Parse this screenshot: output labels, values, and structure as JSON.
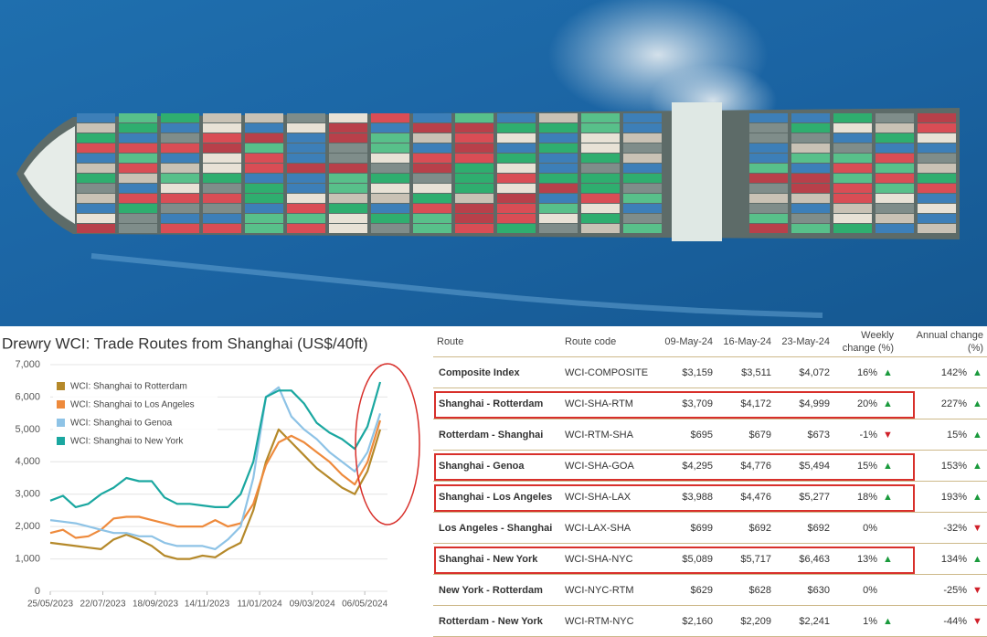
{
  "chart_data": {
    "type": "line",
    "title": "Drewry WCI: Trade Routes from Shanghai (US$/40ft)",
    "x": [
      "25/05/2023",
      "08/06/2023",
      "22/06/2023",
      "06/07/2023",
      "20/07/2023",
      "03/08/2023",
      "17/08/2023",
      "31/08/2023",
      "14/09/2023",
      "28/09/2023",
      "12/10/2023",
      "26/10/2023",
      "09/11/2023",
      "23/11/2023",
      "07/12/2023",
      "21/12/2023",
      "04/01/2024",
      "18/01/2024",
      "01/02/2024",
      "15/02/2024",
      "29/02/2024",
      "14/03/2024",
      "28/03/2024",
      "11/04/2024",
      "25/04/2024",
      "09/05/2024",
      "23/05/2024"
    ],
    "xlim": [
      "25/05/2023",
      "23/05/2024"
    ],
    "xticks": [
      "25/05/2023",
      "22/07/2023",
      "18/09/2023",
      "14/11/2023",
      "11/01/2024",
      "09/03/2024",
      "06/05/2024"
    ],
    "ylim": [
      0,
      7000
    ],
    "yticks": [
      0,
      {
        "value": 1000,
        "label": "1,000"
      },
      {
        "value": 2000,
        "label": "2,000"
      },
      {
        "value": 3000,
        "label": "3,000"
      },
      {
        "value": 4000,
        "label": "4,000"
      },
      {
        "value": 5000,
        "label": "5,000"
      },
      {
        "value": 6000,
        "label": "6,000"
      },
      {
        "value": 7000,
        "label": "7,000"
      }
    ],
    "grid": true,
    "legend": "upper left",
    "series": [
      {
        "name": "WCI: Shanghai to Rotterdam",
        "color": "#b5892a",
        "values": [
          1500,
          1450,
          1400,
          1350,
          1300,
          1600,
          1750,
          1600,
          1400,
          1100,
          1000,
          1000,
          1100,
          1050,
          1300,
          1500,
          2500,
          4000,
          5000,
          4600,
          4200,
          3800,
          3500,
          3200,
          3000,
          3709,
          4999
        ]
      },
      {
        "name": "WCI: Shanghai to Los Angeles",
        "color": "#ee8a3c",
        "values": [
          1800,
          1900,
          1650,
          1700,
          1900,
          2250,
          2300,
          2300,
          2200,
          2100,
          2000,
          2000,
          2000,
          2200,
          2000,
          2100,
          2700,
          3900,
          4600,
          4800,
          4600,
          4300,
          4000,
          3600,
          3300,
          3988,
          5277
        ]
      },
      {
        "name": "WCI: Shanghai to Genoa",
        "color": "#8ec3e6",
        "values": [
          2200,
          2150,
          2100,
          2000,
          1900,
          1800,
          1800,
          1700,
          1700,
          1500,
          1400,
          1400,
          1400,
          1300,
          1600,
          2000,
          3500,
          6000,
          6300,
          5400,
          5000,
          4700,
          4300,
          4000,
          3700,
          4295,
          5494
        ]
      },
      {
        "name": "WCI: Shanghai to New York",
        "color": "#1aa7a0",
        "values": [
          2800,
          2950,
          2600,
          2700,
          3000,
          3200,
          3500,
          3400,
          3400,
          2900,
          2700,
          2700,
          2650,
          2600,
          2600,
          3000,
          4000,
          6000,
          6200,
          6200,
          5800,
          5200,
          4900,
          4700,
          4400,
          5089,
          6463
        ]
      }
    ]
  },
  "table": {
    "header": [
      "Route",
      "Route code",
      "09-May-24",
      "16-May-24",
      "23-May-24",
      "Weekly change (%)",
      "Annual change (%)"
    ],
    "rows": [
      {
        "cells": [
          "Composite Index",
          "WCI-COMPOSITE",
          "$3,159",
          "$3,511",
          "$4,072",
          "16%",
          "142%"
        ],
        "arrows": [
          "▲",
          "▲"
        ],
        "highlight": false
      },
      {
        "cells": [
          "Shanghai - Rotterdam",
          "WCI-SHA-RTM",
          "$3,709",
          "$4,172",
          "$4,999",
          "20%",
          "227%"
        ],
        "arrows": [
          "▲",
          "▲"
        ],
        "highlight": true
      },
      {
        "cells": [
          "Rotterdam - Shanghai",
          "WCI-RTM-SHA",
          "$695",
          "$679",
          "$673",
          "-1%",
          "15%"
        ],
        "arrows": [
          "▼",
          "▲"
        ],
        "highlight": false
      },
      {
        "cells": [
          "Shanghai - Genoa",
          "WCI-SHA-GOA",
          "$4,295",
          "$4,776",
          "$5,494",
          "15%",
          "153%"
        ],
        "arrows": [
          "▲",
          "▲"
        ],
        "highlight": true
      },
      {
        "cells": [
          "Shanghai - Los Angeles",
          "WCI-SHA-LAX",
          "$3,988",
          "$4,476",
          "$5,277",
          "18%",
          "193%"
        ],
        "arrows": [
          "▲",
          "▲"
        ],
        "highlight": true
      },
      {
        "cells": [
          "Los Angeles - Shanghai",
          "WCI-LAX-SHA",
          "$699",
          "$692",
          "$692",
          "0%",
          "-32%"
        ],
        "arrows": [
          null,
          "▼"
        ],
        "highlight": false
      },
      {
        "cells": [
          "Shanghai - New York",
          "WCI-SHA-NYC",
          "$5,089",
          "$5,717",
          "$6,463",
          "13%",
          "134%"
        ],
        "arrows": [
          "▲",
          "▲"
        ],
        "highlight": true
      },
      {
        "cells": [
          "New York - Rotterdam",
          "WCI-NYC-RTM",
          "$629",
          "$628",
          "$630",
          "0%",
          "-25%"
        ],
        "arrows": [
          null,
          "▼"
        ],
        "highlight": false
      },
      {
        "cells": [
          "Rotterdam - New York",
          "WCI-RTM-NYC",
          "$2,160",
          "$2,209",
          "$2,241",
          "1%",
          "-44%"
        ],
        "arrows": [
          "▲",
          "▼"
        ],
        "highlight": false
      }
    ]
  }
}
